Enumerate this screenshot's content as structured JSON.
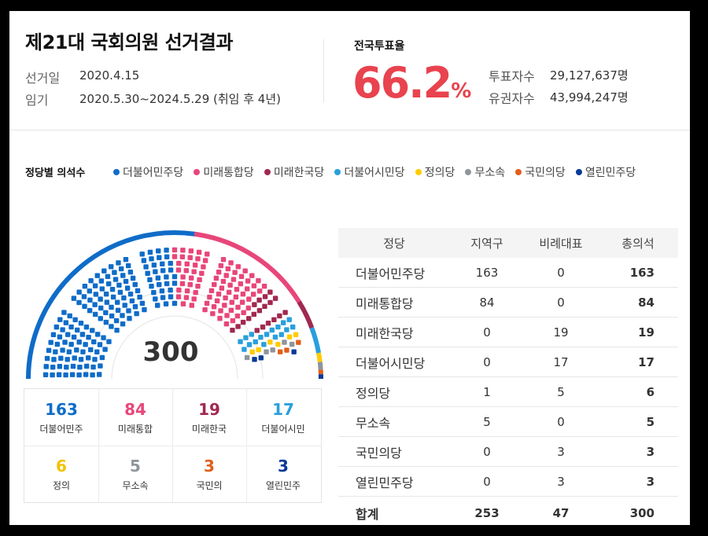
{
  "header": {
    "title": "제21대 국회의원 선거결과",
    "election_day_label": "선거일",
    "election_day": "2020.4.15",
    "term_label": "임기",
    "term": "2020.5.30~2024.5.29 (취임 후 4년)"
  },
  "turnout": {
    "label": "전국투표율",
    "value": "66.2",
    "unit": "%",
    "voters_label": "투표자수",
    "voters": "29,127,637명",
    "electorate_label": "유권자수",
    "electorate": "43,994,247명"
  },
  "legend": {
    "title": "정당별 의석수",
    "items": [
      {
        "label": "더불어민주당",
        "color": "#0f6cc8"
      },
      {
        "label": "미래통합당",
        "color": "#e8467a"
      },
      {
        "label": "미래한국당",
        "color": "#a0294f"
      },
      {
        "label": "더불어시민당",
        "color": "#2a9fdc"
      },
      {
        "label": "정의당",
        "color": "#ffcc00"
      },
      {
        "label": "무소속",
        "color": "#8f959b"
      },
      {
        "label": "국민의당",
        "color": "#e0601b"
      },
      {
        "label": "열린민주당",
        "color": "#083a97"
      }
    ]
  },
  "hemicycle": {
    "total": "300"
  },
  "seat_summary": [
    {
      "count": "163",
      "name": "더불어민주",
      "color": "#0f6cc8"
    },
    {
      "count": "84",
      "name": "미래통합",
      "color": "#e8467a"
    },
    {
      "count": "19",
      "name": "미래한국",
      "color": "#a0294f"
    },
    {
      "count": "17",
      "name": "더불어시민",
      "color": "#2a9fdc"
    },
    {
      "count": "6",
      "name": "정의",
      "color": "#f2c200"
    },
    {
      "count": "5",
      "name": "무소속",
      "color": "#8f959b"
    },
    {
      "count": "3",
      "name": "국민의",
      "color": "#e0601b"
    },
    {
      "count": "3",
      "name": "열린민주",
      "color": "#083a97"
    }
  ],
  "table": {
    "headers": [
      "정당",
      "지역구",
      "비례대표",
      "총의석"
    ],
    "rows": [
      [
        "더불어민주당",
        "163",
        "0",
        "163"
      ],
      [
        "미래통합당",
        "84",
        "0",
        "84"
      ],
      [
        "미래한국당",
        "0",
        "19",
        "19"
      ],
      [
        "더불어시민당",
        "0",
        "17",
        "17"
      ],
      [
        "정의당",
        "1",
        "5",
        "6"
      ],
      [
        "무소속",
        "5",
        "0",
        "5"
      ],
      [
        "국민의당",
        "0",
        "3",
        "3"
      ],
      [
        "열린민주당",
        "0",
        "3",
        "3"
      ]
    ],
    "total": [
      "합계",
      "253",
      "47",
      "300"
    ]
  }
}
